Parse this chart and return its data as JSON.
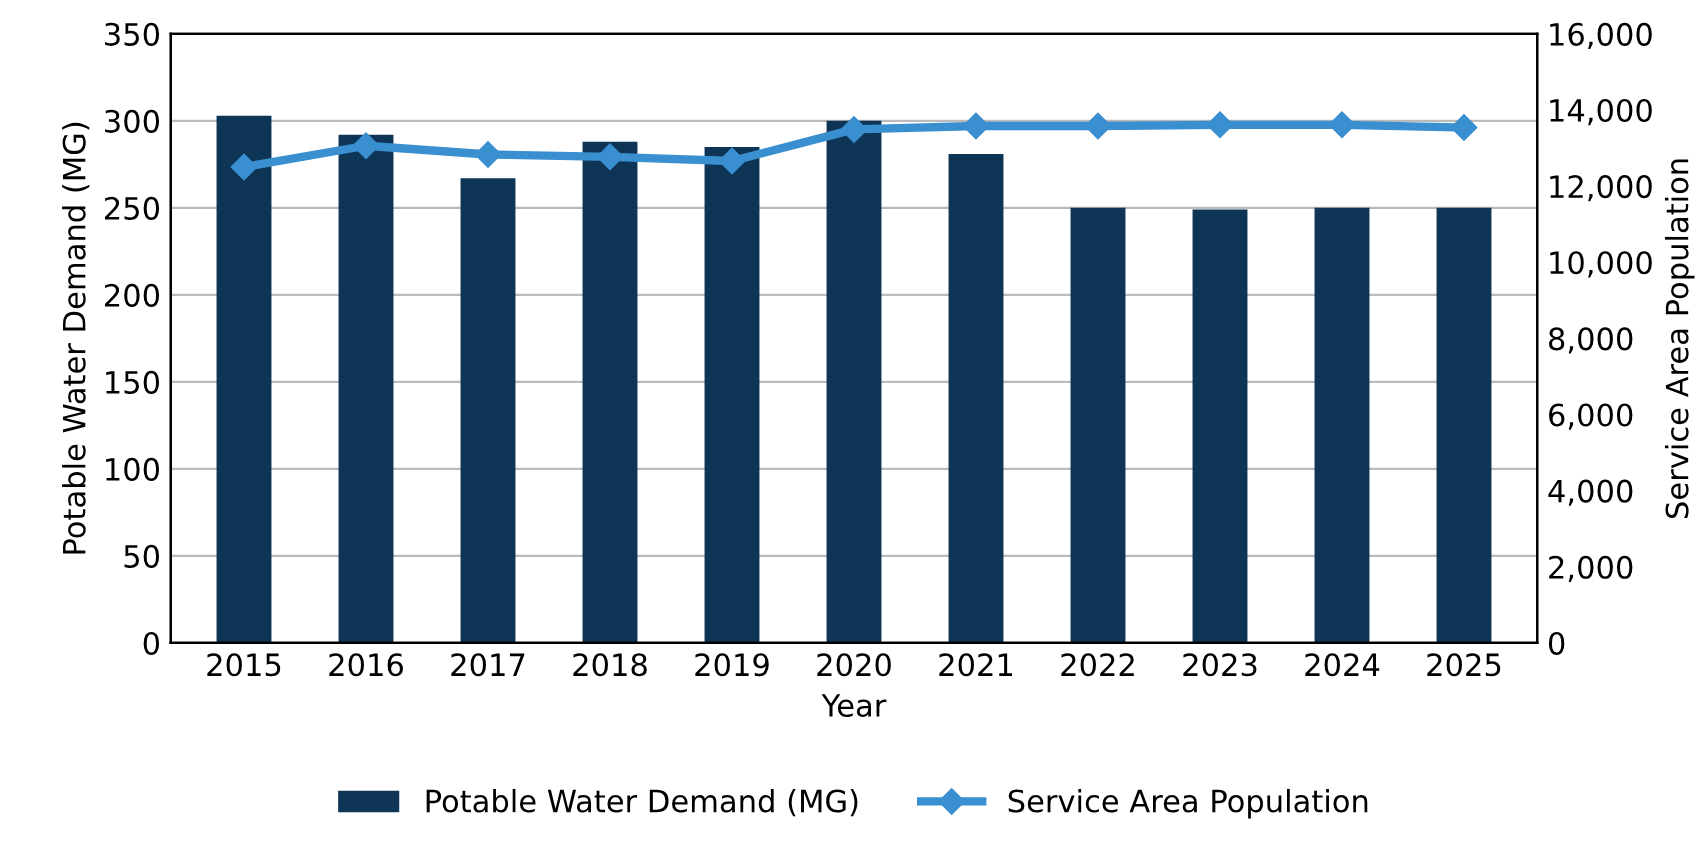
{
  "chart_data": {
    "type": "bar",
    "xlabel": "Year",
    "ylabel": "Potable Water Demand (MG)",
    "y2label": "Service Area Population",
    "categories": [
      "2015",
      "2016",
      "2017",
      "2018",
      "2019",
      "2020",
      "2021",
      "2022",
      "2023",
      "2024",
      "2025"
    ],
    "series": [
      {
        "name": "Potable Water Demand (MG)",
        "color": "#0f3556",
        "values": [
          303,
          292,
          267,
          288,
          285,
          300,
          281,
          250,
          249,
          250,
          250
        ]
      },
      {
        "name": "Service Area Population",
        "type": "line",
        "axis": "y2",
        "color": "#3a8fd0",
        "marker": "diamond",
        "values": [
          12500,
          13060,
          12830,
          12770,
          12660,
          13490,
          13580,
          13580,
          13610,
          13610,
          13540
        ]
      }
    ],
    "ylim": [
      0,
      350
    ],
    "yticks": [
      0,
      50,
      100,
      150,
      200,
      250,
      300,
      350
    ],
    "y2lim": [
      0,
      16000
    ],
    "y2ticks": [
      {
        "value": 0,
        "label": "0"
      },
      {
        "value": 2000,
        "label": "2,000"
      },
      {
        "value": 4000,
        "label": "4,000"
      },
      {
        "value": 6000,
        "label": "6,000"
      },
      {
        "value": 8000,
        "label": "8,000"
      },
      {
        "value": 10000,
        "label": "10,000"
      },
      {
        "value": 12000,
        "label": "12,000"
      },
      {
        "value": 14000,
        "label": "14,000"
      },
      {
        "value": 16000,
        "label": "16,000"
      }
    ],
    "grid": "y",
    "legend": "bottom"
  }
}
